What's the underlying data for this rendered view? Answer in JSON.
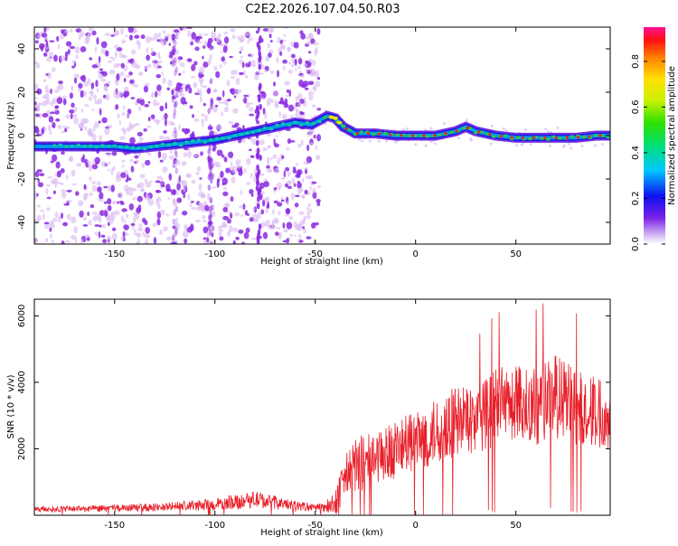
{
  "title": "C2E2.2026.107.04.50.R03",
  "colors": {
    "snr_line": "#e8202a",
    "ridge_core": "#e8202a",
    "ridge_mid": "#2ec84a",
    "ridge_edge": "#1a1ae0",
    "ridge_outer": "#5a0ae0",
    "scatter_strong": "#8a2be2",
    "scatter_weak": "#d8b8f2"
  },
  "chart_data": [
    {
      "type": "scatter",
      "name": "spectrogram",
      "title": "C2E2.2026.107.04.50.R03",
      "xlabel": "Height of straight line (km)",
      "ylabel": "Frequency (Hz)",
      "xlim": [
        -190,
        97
      ],
      "ylim": [
        -50,
        50
      ],
      "xticks": [
        -150,
        -100,
        -50,
        0,
        50
      ],
      "yticks": [
        -40,
        -20,
        0,
        20,
        40
      ],
      "ridge": {
        "x": [
          -190,
          -180,
          -170,
          -160,
          -150,
          -140,
          -130,
          -120,
          -110,
          -100,
          -90,
          -80,
          -70,
          -60,
          -52,
          -48,
          -44,
          -40,
          -36,
          -30,
          -20,
          -10,
          0,
          10,
          20,
          25,
          30,
          40,
          50,
          60,
          70,
          80,
          90,
          97
        ],
        "y": [
          -5,
          -5,
          -5,
          -5,
          -5,
          -6,
          -5,
          -4,
          -3,
          -2,
          0,
          2,
          4,
          6,
          5,
          7,
          9,
          8,
          4,
          1,
          1,
          0,
          0,
          0,
          2,
          4,
          2,
          0,
          -1,
          -1,
          -1,
          -1,
          0,
          0
        ]
      },
      "colorbar": {
        "label": "Normalized spectral amplitude",
        "range": [
          0,
          0.95
        ],
        "ticks": [
          "0.0",
          "0.2",
          "0.4",
          "0.6",
          "0.8"
        ],
        "tick_values": [
          0.0,
          0.2,
          0.4,
          0.6,
          0.8
        ]
      }
    },
    {
      "type": "line",
      "name": "snr",
      "xlabel": "Height of straight line (km)",
      "ylabel": "SNR (10 * v/v)",
      "xlim": [
        -190,
        97
      ],
      "ylim": [
        0,
        6500
      ],
      "xticks": [
        -150,
        -100,
        -50,
        0,
        50
      ],
      "yticks": [
        2000,
        4000,
        6000
      ],
      "envelope": {
        "x": [
          -190,
          -160,
          -130,
          -100,
          -90,
          -80,
          -70,
          -60,
          -50,
          -45,
          -40,
          -35,
          -30,
          -20,
          -10,
          0,
          10,
          20,
          30,
          40,
          50,
          60,
          70,
          80,
          90,
          97
        ],
        "mean": [
          180,
          200,
          240,
          320,
          400,
          480,
          380,
          280,
          230,
          250,
          400,
          1100,
          1500,
          1700,
          2000,
          2200,
          2500,
          2800,
          2900,
          3200,
          3400,
          3300,
          3600,
          3200,
          3100,
          3100
        ],
        "amplitude": [
          90,
          100,
          120,
          180,
          230,
          250,
          200,
          150,
          120,
          140,
          400,
          700,
          900,
          800,
          900,
          900,
          1000,
          1100,
          1000,
          1200,
          1200,
          1200,
          1300,
          1200,
          1100,
          1100
        ]
      }
    }
  ]
}
